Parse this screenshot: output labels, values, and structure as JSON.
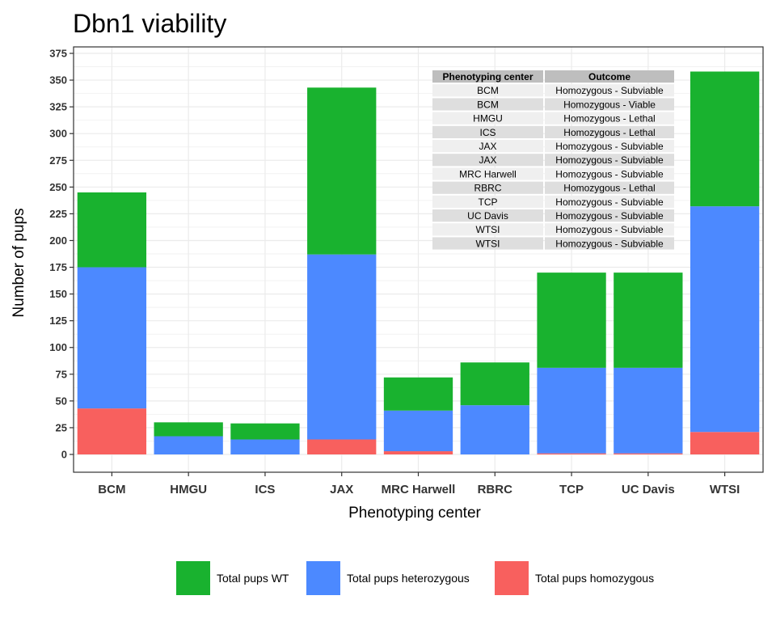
{
  "chart_data": {
    "type": "bar",
    "stacked": true,
    "title": "Dbn1 viability",
    "xlabel": "Phenotyping center",
    "ylabel": "Number of pups",
    "ylim": [
      -20,
      375
    ],
    "yticks": [
      0,
      25,
      50,
      75,
      100,
      125,
      150,
      175,
      200,
      225,
      250,
      275,
      300,
      325,
      350,
      375
    ],
    "categories": [
      "BCM",
      "HMGU",
      "ICS",
      "JAX",
      "MRC Harwell",
      "RBRC",
      "TCP",
      "UC Davis",
      "WTSI"
    ],
    "series": [
      {
        "name": "Total pups homozygous",
        "color": "#F8605E",
        "values": [
          43,
          0,
          0,
          14,
          3,
          0,
          1,
          1,
          21
        ]
      },
      {
        "name": "Total pups heterozygous",
        "color": "#4C89FF",
        "values": [
          132,
          17,
          14,
          173,
          38,
          46,
          80,
          80,
          211
        ]
      },
      {
        "name": "Total pups WT",
        "color": "#19B22F",
        "values": [
          70,
          13,
          15,
          156,
          31,
          40,
          89,
          89,
          126
        ]
      }
    ],
    "grid": true,
    "legend_position": "bottom",
    "legend_order": [
      "Total pups WT",
      "Total pups heterozygous",
      "Total pups homozygous"
    ],
    "inset_table": {
      "headers": [
        "Phenotyping center",
        "Outcome"
      ],
      "rows": [
        [
          "BCM",
          "Homozygous - Subviable"
        ],
        [
          "BCM",
          "Homozygous - Viable"
        ],
        [
          "HMGU",
          "Homozygous - Lethal"
        ],
        [
          "ICS",
          "Homozygous - Lethal"
        ],
        [
          "JAX",
          "Homozygous - Subviable"
        ],
        [
          "JAX",
          "Homozygous - Subviable"
        ],
        [
          "MRC Harwell",
          "Homozygous - Subviable"
        ],
        [
          "RBRC",
          "Homozygous - Lethal"
        ],
        [
          "TCP",
          "Homozygous - Subviable"
        ],
        [
          "UC Davis",
          "Homozygous - Subviable"
        ],
        [
          "WTSI",
          "Homozygous - Subviable"
        ],
        [
          "WTSI",
          "Homozygous - Subviable"
        ]
      ]
    }
  }
}
